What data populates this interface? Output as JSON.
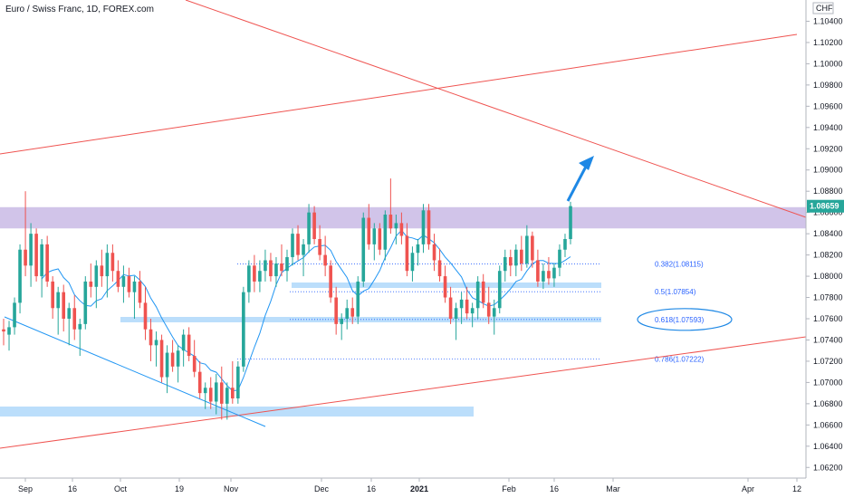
{
  "chart_data": {
    "type": "candlestick",
    "title": "Euro / Swiss Franc, 1D, FOREX.com",
    "currency": "CHF",
    "ylim": [
      1.061,
      1.106
    ],
    "y_ticks": [
      "1.10400",
      "1.10200",
      "1.10000",
      "1.09800",
      "1.09600",
      "1.09400",
      "1.09200",
      "1.09000",
      "1.08800",
      "1.08600",
      "1.08400",
      "1.08200",
      "1.08000",
      "1.07800",
      "1.07600",
      "1.07400",
      "1.07200",
      "1.07000",
      "1.06800",
      "1.06600",
      "1.06400",
      "1.06200"
    ],
    "x_ticks": [
      "Sep",
      "16",
      "Oct",
      "19",
      "Nov",
      "Dec",
      "16",
      "2021",
      "Feb",
      "16",
      "Mar",
      "Apr",
      "12"
    ],
    "last_price": "1.08659",
    "last_price_value": 1.08659,
    "colors": {
      "up": "#26a69a",
      "down": "#ef5350",
      "trend_line": "#ef5350",
      "ma_line": "#2196f3",
      "zone": "#b39ddb",
      "support_band": "#bbdefb",
      "fib": "#2962ff",
      "price_tag": "#26a69a",
      "arrow": "#1e88e5"
    },
    "fib_levels": [
      {
        "label": "0.382(1.08115)",
        "value": 1.08115
      },
      {
        "label": "0.5(1.07854)",
        "value": 1.07854
      },
      {
        "label": "0.618(1.07593)",
        "value": 1.07593
      },
      {
        "label": "0.786(1.07222)",
        "value": 1.07222
      }
    ],
    "resistance_zone": [
      1.0845,
      1.0865
    ],
    "candles": [
      {
        "o": 1.075,
        "h": 1.076,
        "l": 1.0735,
        "c": 1.0748
      },
      {
        "o": 1.0745,
        "h": 1.0758,
        "l": 1.073,
        "c": 1.0752
      },
      {
        "o": 1.0752,
        "h": 1.078,
        "l": 1.0745,
        "c": 1.0775
      },
      {
        "o": 1.0775,
        "h": 1.083,
        "l": 1.0765,
        "c": 1.0825
      },
      {
        "o": 1.0825,
        "h": 1.088,
        "l": 1.08,
        "c": 1.081
      },
      {
        "o": 1.081,
        "h": 1.085,
        "l": 1.079,
        "c": 1.084
      },
      {
        "o": 1.084,
        "h": 1.0845,
        "l": 1.0795,
        "c": 1.08
      },
      {
        "o": 1.08,
        "h": 1.0835,
        "l": 1.078,
        "c": 1.083
      },
      {
        "o": 1.083,
        "h": 1.0838,
        "l": 1.079,
        "c": 1.0795
      },
      {
        "o": 1.0795,
        "h": 1.08,
        "l": 1.076,
        "c": 1.077
      },
      {
        "o": 1.077,
        "h": 1.079,
        "l": 1.0745,
        "c": 1.0785
      },
      {
        "o": 1.0785,
        "h": 1.0792,
        "l": 1.0748,
        "c": 1.076
      },
      {
        "o": 1.076,
        "h": 1.0775,
        "l": 1.0735,
        "c": 1.077
      },
      {
        "o": 1.077,
        "h": 1.0782,
        "l": 1.074,
        "c": 1.075
      },
      {
        "o": 1.075,
        "h": 1.076,
        "l": 1.0725,
        "c": 1.0755
      },
      {
        "o": 1.0755,
        "h": 1.08,
        "l": 1.075,
        "c": 1.0795
      },
      {
        "o": 1.0795,
        "h": 1.0812,
        "l": 1.078,
        "c": 1.079
      },
      {
        "o": 1.079,
        "h": 1.0815,
        "l": 1.077,
        "c": 1.081
      },
      {
        "o": 1.081,
        "h": 1.0825,
        "l": 1.079,
        "c": 1.08
      },
      {
        "o": 1.08,
        "h": 1.083,
        "l": 1.078,
        "c": 1.0822
      },
      {
        "o": 1.0822,
        "h": 1.083,
        "l": 1.0795,
        "c": 1.0805
      },
      {
        "o": 1.0805,
        "h": 1.0815,
        "l": 1.0785,
        "c": 1.079
      },
      {
        "o": 1.079,
        "h": 1.081,
        "l": 1.0775,
        "c": 1.08
      },
      {
        "o": 1.08,
        "h": 1.0808,
        "l": 1.078,
        "c": 1.0785
      },
      {
        "o": 1.0785,
        "h": 1.08,
        "l": 1.076,
        "c": 1.0795
      },
      {
        "o": 1.0795,
        "h": 1.0805,
        "l": 1.077,
        "c": 1.0775
      },
      {
        "o": 1.0775,
        "h": 1.079,
        "l": 1.074,
        "c": 1.075
      },
      {
        "o": 1.075,
        "h": 1.076,
        "l": 1.072,
        "c": 1.0735
      },
      {
        "o": 1.0735,
        "h": 1.0748,
        "l": 1.0715,
        "c": 1.074
      },
      {
        "o": 1.074,
        "h": 1.0745,
        "l": 1.07,
        "c": 1.0705
      },
      {
        "o": 1.0705,
        "h": 1.0735,
        "l": 1.069,
        "c": 1.0728
      },
      {
        "o": 1.0728,
        "h": 1.074,
        "l": 1.071,
        "c": 1.0715
      },
      {
        "o": 1.0715,
        "h": 1.0735,
        "l": 1.07,
        "c": 1.073
      },
      {
        "o": 1.073,
        "h": 1.075,
        "l": 1.0715,
        "c": 1.0745
      },
      {
        "o": 1.0745,
        "h": 1.0752,
        "l": 1.072,
        "c": 1.0725
      },
      {
        "o": 1.0725,
        "h": 1.074,
        "l": 1.0705,
        "c": 1.071
      },
      {
        "o": 1.071,
        "h": 1.072,
        "l": 1.0685,
        "c": 1.069
      },
      {
        "o": 1.069,
        "h": 1.07,
        "l": 1.0675,
        "c": 1.0695
      },
      {
        "o": 1.0695,
        "h": 1.0705,
        "l": 1.0675,
        "c": 1.0682
      },
      {
        "o": 1.0682,
        "h": 1.0708,
        "l": 1.067,
        "c": 1.07
      },
      {
        "o": 1.07,
        "h": 1.0715,
        "l": 1.0665,
        "c": 1.068
      },
      {
        "o": 1.068,
        "h": 1.07,
        "l": 1.0665,
        "c": 1.0695
      },
      {
        "o": 1.0695,
        "h": 1.072,
        "l": 1.068,
        "c": 1.0685
      },
      {
        "o": 1.0685,
        "h": 1.072,
        "l": 1.068,
        "c": 1.0715
      },
      {
        "o": 1.0715,
        "h": 1.079,
        "l": 1.071,
        "c": 1.0785
      },
      {
        "o": 1.0785,
        "h": 1.0815,
        "l": 1.0775,
        "c": 1.081
      },
      {
        "o": 1.081,
        "h": 1.082,
        "l": 1.0785,
        "c": 1.0795
      },
      {
        "o": 1.0795,
        "h": 1.0815,
        "l": 1.0785,
        "c": 1.0805
      },
      {
        "o": 1.0805,
        "h": 1.0825,
        "l": 1.0795,
        "c": 1.0815
      },
      {
        "o": 1.0815,
        "h": 1.0822,
        "l": 1.0795,
        "c": 1.08
      },
      {
        "o": 1.08,
        "h": 1.0818,
        "l": 1.079,
        "c": 1.0812
      },
      {
        "o": 1.0812,
        "h": 1.083,
        "l": 1.08,
        "c": 1.0805
      },
      {
        "o": 1.0805,
        "h": 1.0825,
        "l": 1.0795,
        "c": 1.0818
      },
      {
        "o": 1.0818,
        "h": 1.0845,
        "l": 1.081,
        "c": 1.084
      },
      {
        "o": 1.084,
        "h": 1.0848,
        "l": 1.0815,
        "c": 1.082
      },
      {
        "o": 1.082,
        "h": 1.0835,
        "l": 1.08,
        "c": 1.083
      },
      {
        "o": 1.083,
        "h": 1.0868,
        "l": 1.0822,
        "c": 1.086
      },
      {
        "o": 1.086,
        "h": 1.0866,
        "l": 1.083,
        "c": 1.0835
      },
      {
        "o": 1.0835,
        "h": 1.0848,
        "l": 1.0815,
        "c": 1.082
      },
      {
        "o": 1.082,
        "h": 1.0838,
        "l": 1.08,
        "c": 1.081
      },
      {
        "o": 1.081,
        "h": 1.0815,
        "l": 1.0775,
        "c": 1.078
      },
      {
        "o": 1.078,
        "h": 1.079,
        "l": 1.0745,
        "c": 1.0755
      },
      {
        "o": 1.0755,
        "h": 1.0765,
        "l": 1.074,
        "c": 1.076
      },
      {
        "o": 1.076,
        "h": 1.0778,
        "l": 1.075,
        "c": 1.077
      },
      {
        "o": 1.077,
        "h": 1.078,
        "l": 1.0755,
        "c": 1.0762
      },
      {
        "o": 1.0762,
        "h": 1.08,
        "l": 1.0755,
        "c": 1.0795
      },
      {
        "o": 1.0795,
        "h": 1.086,
        "l": 1.079,
        "c": 1.0855
      },
      {
        "o": 1.0855,
        "h": 1.0868,
        "l": 1.0825,
        "c": 1.083
      },
      {
        "o": 1.083,
        "h": 1.085,
        "l": 1.0815,
        "c": 1.0845
      },
      {
        "o": 1.0845,
        "h": 1.085,
        "l": 1.082,
        "c": 1.0825
      },
      {
        "o": 1.0825,
        "h": 1.0862,
        "l": 1.0815,
        "c": 1.0858
      },
      {
        "o": 1.0858,
        "h": 1.0892,
        "l": 1.084,
        "c": 1.0845
      },
      {
        "o": 1.0845,
        "h": 1.0858,
        "l": 1.083,
        "c": 1.085
      },
      {
        "o": 1.085,
        "h": 1.086,
        "l": 1.083,
        "c": 1.0838
      },
      {
        "o": 1.0838,
        "h": 1.085,
        "l": 1.08,
        "c": 1.0805
      },
      {
        "o": 1.0805,
        "h": 1.0828,
        "l": 1.0795,
        "c": 1.0822
      },
      {
        "o": 1.0822,
        "h": 1.0835,
        "l": 1.081,
        "c": 1.083
      },
      {
        "o": 1.083,
        "h": 1.0868,
        "l": 1.0822,
        "c": 1.0862
      },
      {
        "o": 1.0862,
        "h": 1.0868,
        "l": 1.0825,
        "c": 1.083
      },
      {
        "o": 1.083,
        "h": 1.084,
        "l": 1.0805,
        "c": 1.0815
      },
      {
        "o": 1.0815,
        "h": 1.0826,
        "l": 1.0795,
        "c": 1.08
      },
      {
        "o": 1.08,
        "h": 1.081,
        "l": 1.0775,
        "c": 1.078
      },
      {
        "o": 1.078,
        "h": 1.079,
        "l": 1.0755,
        "c": 1.076
      },
      {
        "o": 1.076,
        "h": 1.0775,
        "l": 1.074,
        "c": 1.077
      },
      {
        "o": 1.077,
        "h": 1.0785,
        "l": 1.0755,
        "c": 1.0778
      },
      {
        "o": 1.0778,
        "h": 1.079,
        "l": 1.076,
        "c": 1.0765
      },
      {
        "o": 1.0765,
        "h": 1.0775,
        "l": 1.0752,
        "c": 1.077
      },
      {
        "o": 1.077,
        "h": 1.08,
        "l": 1.076,
        "c": 1.0795
      },
      {
        "o": 1.0795,
        "h": 1.0802,
        "l": 1.077,
        "c": 1.0775
      },
      {
        "o": 1.0775,
        "h": 1.079,
        "l": 1.0755,
        "c": 1.0762
      },
      {
        "o": 1.0762,
        "h": 1.0778,
        "l": 1.0745,
        "c": 1.077
      },
      {
        "o": 1.077,
        "h": 1.081,
        "l": 1.0765,
        "c": 1.0805
      },
      {
        "o": 1.0805,
        "h": 1.0825,
        "l": 1.0795,
        "c": 1.0818
      },
      {
        "o": 1.0818,
        "h": 1.0825,
        "l": 1.08,
        "c": 1.081
      },
      {
        "o": 1.081,
        "h": 1.083,
        "l": 1.08,
        "c": 1.0825
      },
      {
        "o": 1.0825,
        "h": 1.0838,
        "l": 1.0805,
        "c": 1.0812
      },
      {
        "o": 1.0812,
        "h": 1.0848,
        "l": 1.0808,
        "c": 1.0838
      },
      {
        "o": 1.0838,
        "h": 1.0842,
        "l": 1.0808,
        "c": 1.0815
      },
      {
        "o": 1.0815,
        "h": 1.0825,
        "l": 1.079,
        "c": 1.0795
      },
      {
        "o": 1.0795,
        "h": 1.0812,
        "l": 1.0788,
        "c": 1.0805
      },
      {
        "o": 1.0805,
        "h": 1.0818,
        "l": 1.0792,
        "c": 1.0798
      },
      {
        "o": 1.0798,
        "h": 1.0812,
        "l": 1.079,
        "c": 1.0808
      },
      {
        "o": 1.0808,
        "h": 1.083,
        "l": 1.08,
        "c": 1.0825
      },
      {
        "o": 1.0825,
        "h": 1.084,
        "l": 1.0818,
        "c": 1.0835
      },
      {
        "o": 1.0835,
        "h": 1.087,
        "l": 1.083,
        "c": 1.0866
      }
    ]
  }
}
